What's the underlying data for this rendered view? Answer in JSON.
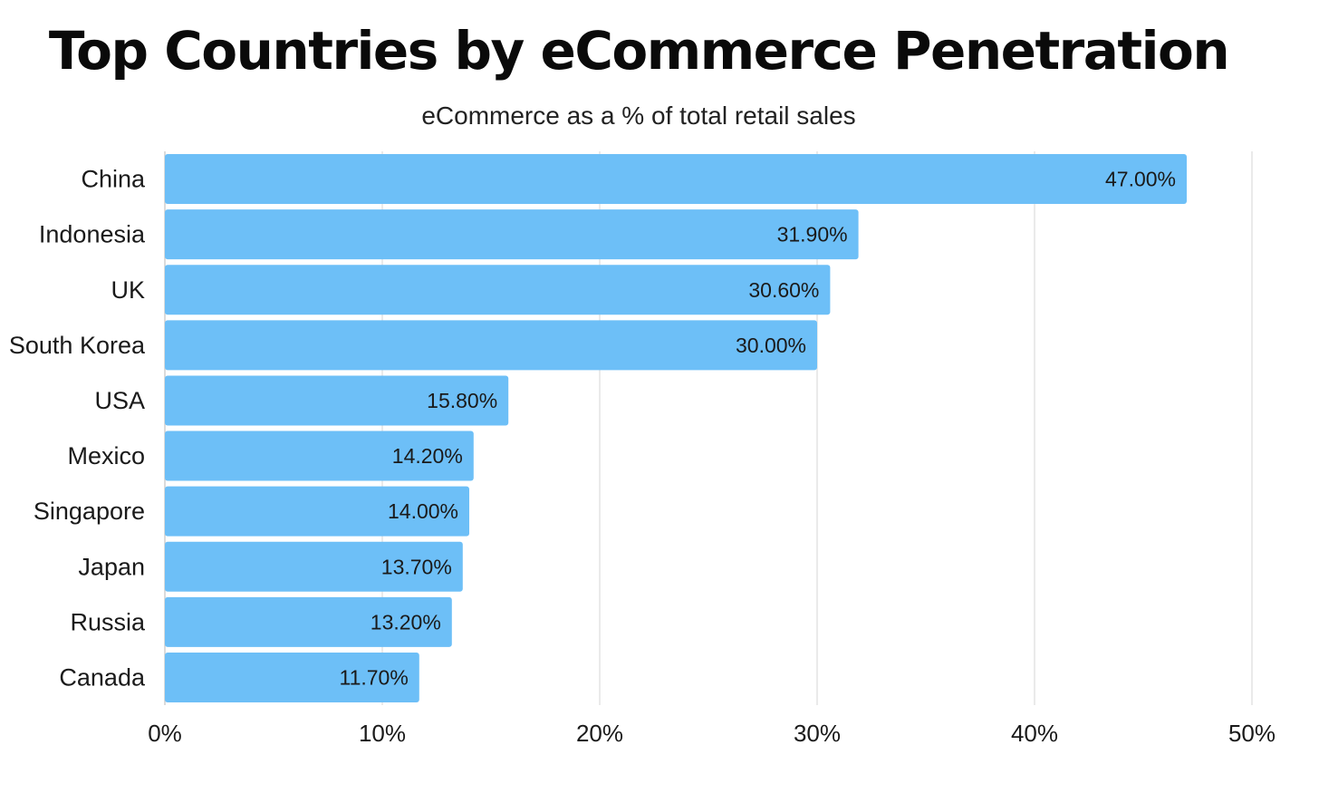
{
  "chart_data": {
    "type": "bar",
    "orientation": "horizontal",
    "title": "Top Countries by eCommerce Penetration",
    "subtitle": "eCommerce as a % of total retail sales",
    "categories": [
      "China",
      "Indonesia",
      "UK",
      "South Korea",
      "USA",
      "Mexico",
      "Singapore",
      "Japan",
      "Russia",
      "Canada"
    ],
    "values": [
      47.0,
      31.9,
      30.6,
      30.0,
      15.8,
      14.2,
      14.0,
      13.7,
      13.2,
      11.7
    ],
    "value_labels": [
      "47.00%",
      "31.90%",
      "30.60%",
      "30.00%",
      "15.80%",
      "14.20%",
      "14.00%",
      "13.70%",
      "13.20%",
      "11.70%"
    ],
    "xlim": [
      0,
      50
    ],
    "xticks": [
      0,
      10,
      20,
      30,
      40,
      50
    ],
    "xtick_labels": [
      "0%",
      "10%",
      "20%",
      "30%",
      "40%",
      "50%"
    ],
    "xlabel": "",
    "ylabel": "",
    "grid": true,
    "bar_color": "#6dbff7",
    "grid_color": "#e3e3e3"
  }
}
